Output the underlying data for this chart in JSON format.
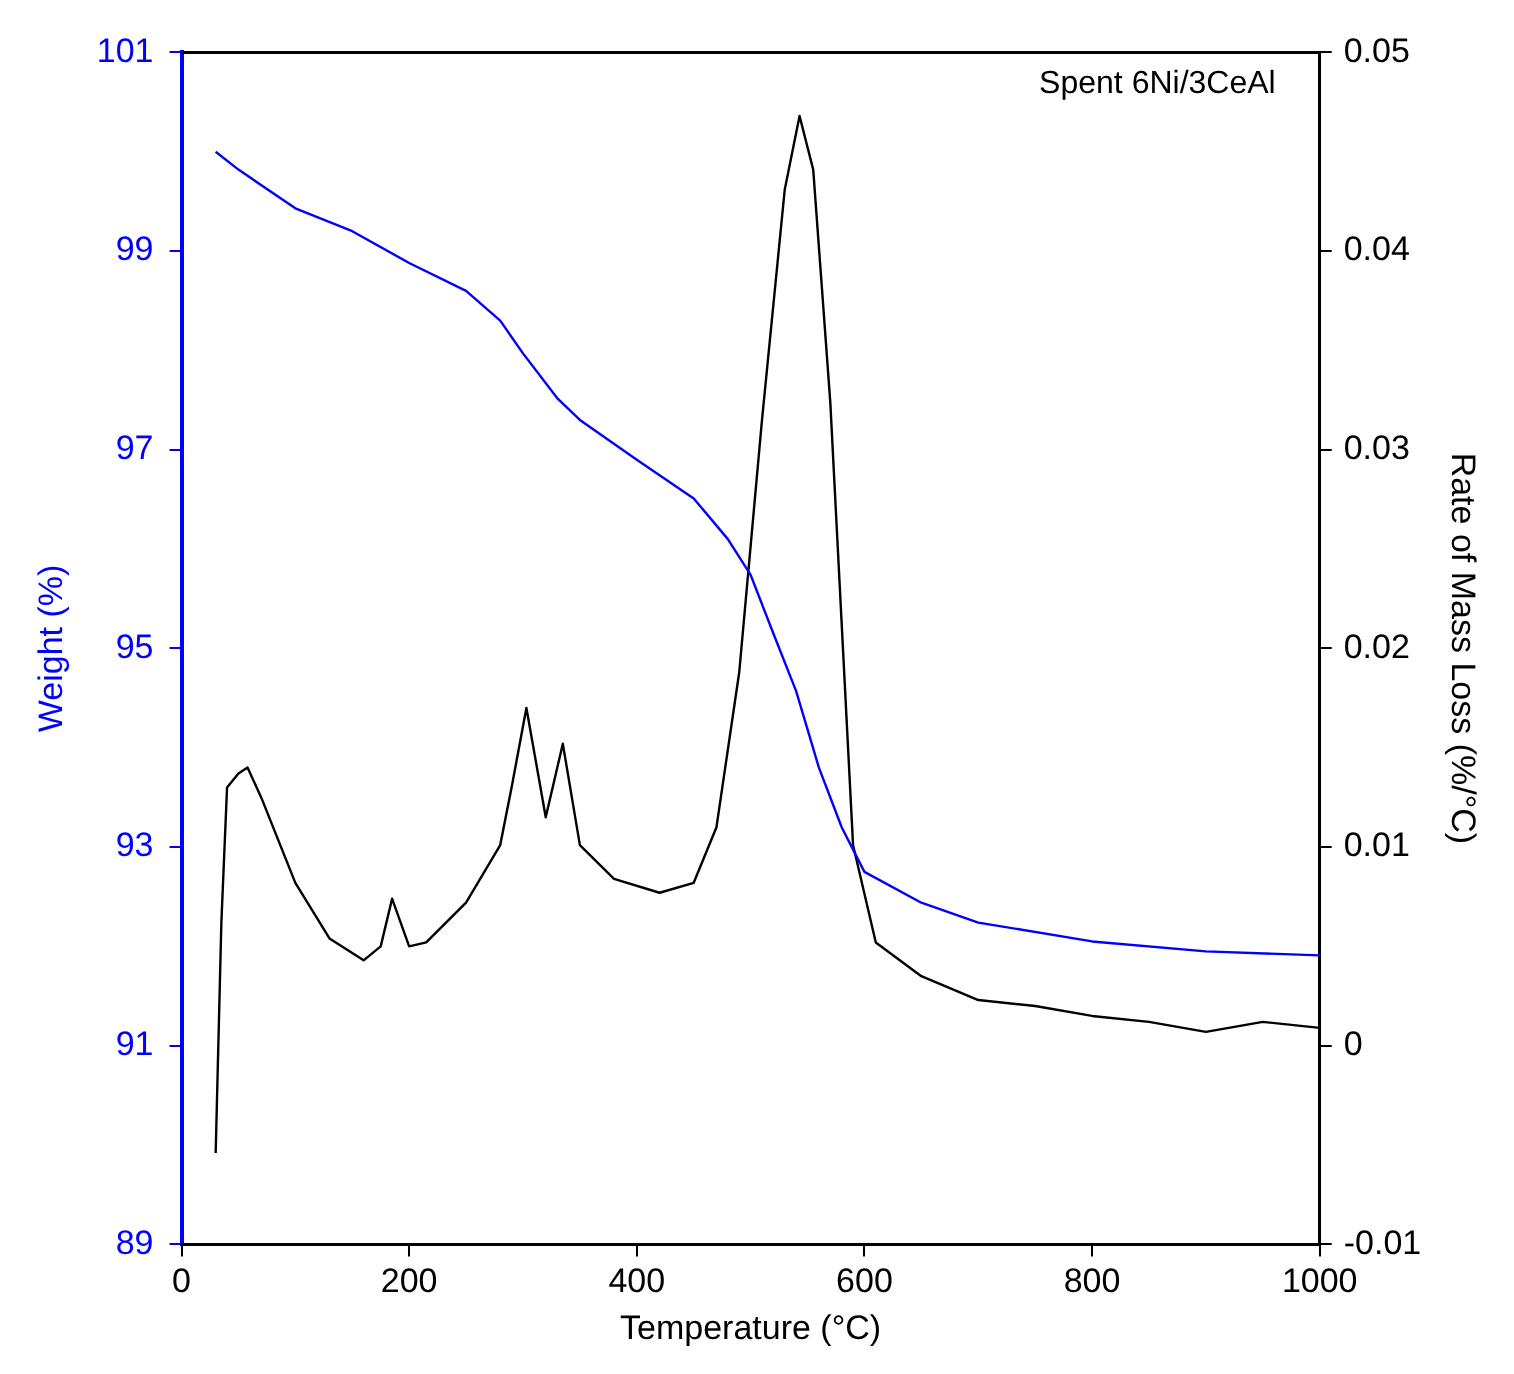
{
  "chart_data": {
    "type": "line",
    "xlabel": "Temperature (°C)",
    "ylabel": "Weight (%)",
    "y2label": "Rate of Mass Loss (%/°C)",
    "annotations": [
      "Spent 6Ni/3CeAl"
    ],
    "xlim": [
      0,
      1000
    ],
    "xticks": [
      0,
      200,
      400,
      600,
      800,
      1000
    ],
    "ylim": [
      89,
      101
    ],
    "yticks": [
      89,
      91,
      93,
      95,
      97,
      99,
      101
    ],
    "y2lim": [
      -0.01,
      0.05
    ],
    "y2ticks": [
      -0.01,
      0,
      0.01,
      0.02,
      0.03,
      0.04,
      0.05
    ],
    "grid": false,
    "legend": false,
    "marker": "none",
    "line_style": "solid",
    "series": [
      {
        "color": "#0000ff",
        "x": [
          30,
          50,
          100,
          150,
          200,
          250,
          280,
          300,
          330,
          350,
          400,
          450,
          480,
          500,
          520,
          540,
          560,
          580,
          600,
          650,
          700,
          800,
          900,
          1000
        ],
        "values": [
          100.0,
          99.82,
          99.43,
          99.2,
          98.88,
          98.6,
          98.3,
          97.97,
          97.52,
          97.3,
          96.9,
          96.51,
          96.1,
          95.74,
          95.15,
          94.57,
          93.8,
          93.2,
          92.75,
          92.44,
          92.24,
          92.05,
          91.95,
          91.91
        ]
      },
      {
        "color": "#000000",
        "axis": "y2",
        "x": [
          30,
          35,
          40,
          50,
          58,
          70,
          100,
          130,
          160,
          175,
          185,
          200,
          215,
          250,
          280,
          290,
          303,
          320,
          335,
          350,
          380,
          420,
          450,
          470,
          490,
          510,
          530,
          543,
          555,
          570,
          590,
          610,
          650,
          700,
          750,
          800,
          850,
          900,
          950,
          1000
        ],
        "values": [
          -0.0054,
          0.0062,
          0.013,
          0.0137,
          0.014,
          0.0125,
          0.0082,
          0.0054,
          0.0043,
          0.005,
          0.0074,
          0.005,
          0.0052,
          0.0072,
          0.0101,
          0.013,
          0.017,
          0.0115,
          0.0152,
          0.0101,
          0.0084,
          0.0077,
          0.0082,
          0.011,
          0.0188,
          0.0315,
          0.0431,
          0.0468,
          0.0441,
          0.0324,
          0.0101,
          0.0052,
          0.0035,
          0.0023,
          0.002,
          0.0015,
          0.0012,
          0.0007,
          0.0012,
          0.0009
        ]
      }
    ]
  }
}
